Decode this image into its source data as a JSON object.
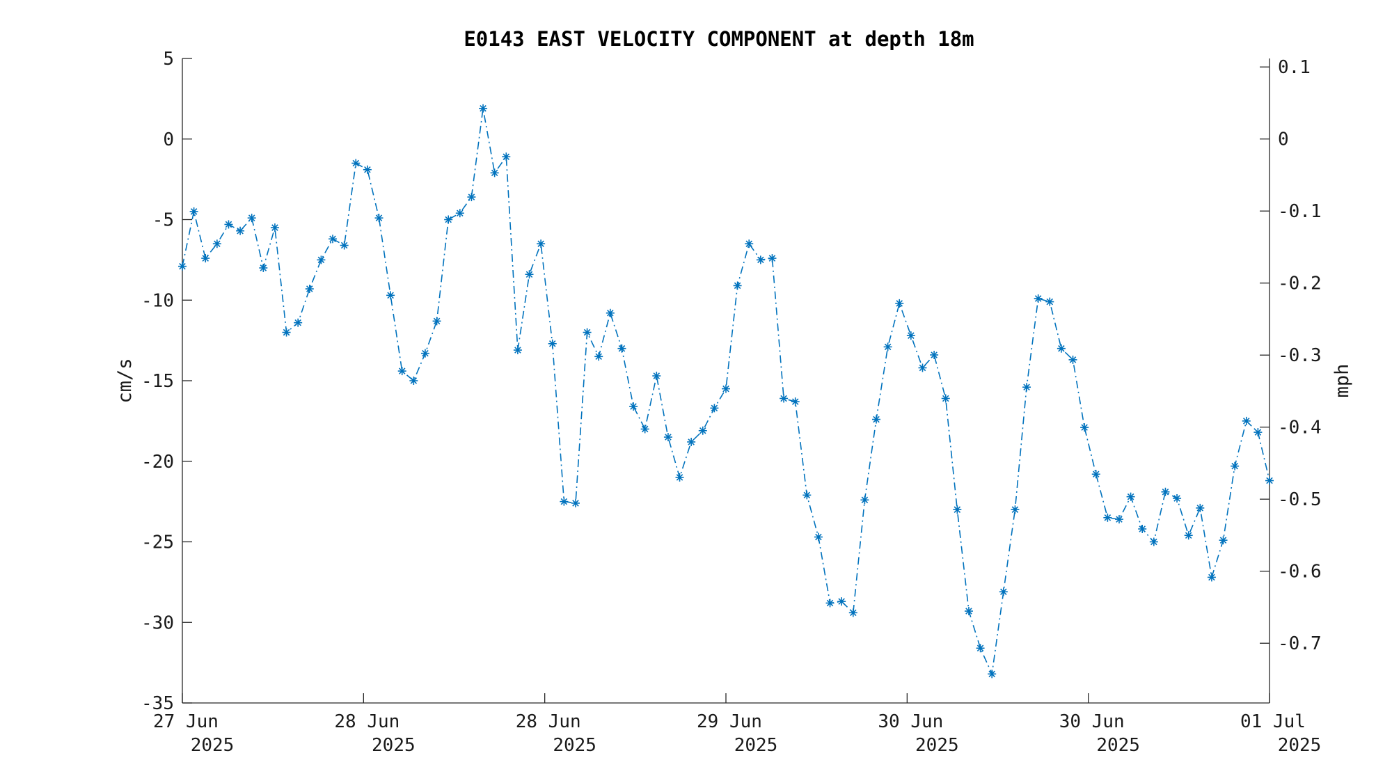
{
  "chart_data": {
    "type": "line",
    "title": "E0143 EAST VELOCITY COMPONENT at depth 18m",
    "ylabel": "cm/s",
    "y2label": "mph",
    "ylim": [
      -35,
      5
    ],
    "y2lim": [
      -0.7829,
      0.1118
    ],
    "yticks": [
      5,
      0,
      -5,
      -10,
      -15,
      -20,
      -25,
      -30,
      -35
    ],
    "y2ticks": [
      "0.1",
      "0",
      "-0.1",
      "-0.2",
      "-0.3",
      "-0.4",
      "-0.5",
      "-0.6",
      "-0.7"
    ],
    "y2tick_values": [
      0.1,
      0,
      -0.1,
      -0.2,
      -0.3,
      -0.4,
      -0.5,
      -0.6,
      -0.7
    ],
    "xticks": [
      {
        "line1": "27 Jun",
        "line2": "2025"
      },
      {
        "line1": "28 Jun",
        "line2": "2025"
      },
      {
        "line1": "28 Jun",
        "line2": "2025"
      },
      {
        "line1": "29 Jun",
        "line2": "2025"
      },
      {
        "line1": "30 Jun",
        "line2": "2025"
      },
      {
        "line1": "30 Jun",
        "line2": "2025"
      },
      {
        "line1": "01 Jul",
        "line2": "2025"
      }
    ],
    "grid": false,
    "marker": "asterisk",
    "line_style": "dash-dot",
    "color": "#0072BD",
    "series": [
      {
        "values": [
          -7.9,
          -4.5,
          -7.4,
          -6.5,
          -5.3,
          -5.7,
          -4.9,
          -8.0,
          -5.5,
          -12.0,
          -11.4,
          -9.3,
          -7.5,
          -6.2,
          -6.6,
          -1.5,
          -1.9,
          -4.9,
          -9.7,
          -14.4,
          -15.0,
          -13.3,
          -11.3,
          -5.0,
          -4.6,
          -3.6,
          1.9,
          -2.1,
          -1.1,
          -13.1,
          -8.4,
          -6.5,
          -12.7,
          -22.5,
          -22.6,
          -12.0,
          -13.5,
          -10.8,
          -13.0,
          -16.6,
          -18.0,
          -14.7,
          -18.5,
          -21.0,
          -18.8,
          -18.1,
          -16.7,
          -15.5,
          -9.1,
          -6.5,
          -7.5,
          -7.4,
          -16.1,
          -16.3,
          -22.1,
          -24.7,
          -28.8,
          -28.7,
          -29.4,
          -22.4,
          -17.4,
          -12.9,
          -10.2,
          -12.2,
          -14.2,
          -13.4,
          -16.1,
          -23.0,
          -29.3,
          -31.6,
          -33.2,
          -28.1,
          -23.0,
          -15.4,
          -9.9,
          -10.1,
          -13.0,
          -13.7,
          -17.9,
          -20.8,
          -23.5,
          -23.6,
          -22.2,
          -24.2,
          -25.0,
          -21.9,
          -22.3,
          -24.6,
          -22.9,
          -27.2,
          -24.9,
          -20.3,
          -17.5,
          -18.2,
          -21.2
        ]
      }
    ]
  }
}
